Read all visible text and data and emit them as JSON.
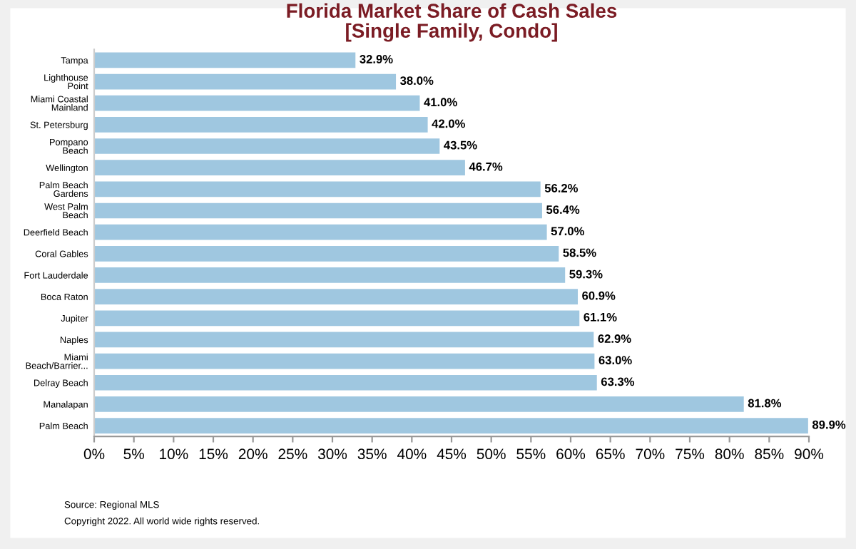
{
  "chart_data": {
    "type": "bar",
    "orientation": "horizontal",
    "title": "Florida Market Share of Cash Sales\n[Single Family, Condo]",
    "categories": [
      "Tampa",
      "Lighthouse\nPoint",
      "Miami Coastal\nMainland",
      "St. Petersburg",
      "Pompano\nBeach",
      "Wellington",
      "Palm Beach\nGardens",
      "West Palm\nBeach",
      "Deerfield Beach",
      "Coral Gables",
      "Fort Lauderdale",
      "Boca Raton",
      "Jupiter",
      "Naples",
      "Miami\nBeach/Barrier...",
      "Delray Beach",
      "Manalapan",
      "Palm Beach"
    ],
    "values": [
      32.9,
      38.0,
      41.0,
      42.0,
      43.5,
      46.7,
      56.2,
      56.4,
      57.0,
      58.5,
      59.3,
      60.9,
      61.1,
      62.9,
      63.0,
      63.3,
      81.8,
      89.9
    ],
    "value_labels": [
      "32.9%",
      "38.0%",
      "41.0%",
      "42.0%",
      "43.5%",
      "46.7%",
      "56.2%",
      "56.4%",
      "57.0%",
      "58.5%",
      "59.3%",
      "60.9%",
      "61.1%",
      "62.9%",
      "63.0%",
      "63.3%",
      "81.8%",
      "89.9%"
    ],
    "color": "#9fc7e0",
    "xlim": [
      0,
      90
    ],
    "xticks": [
      {
        "value": 0,
        "label": "0%"
      },
      {
        "value": 5,
        "label": "5%"
      },
      {
        "value": 10,
        "label": "10%"
      },
      {
        "value": 15,
        "label": "15%"
      },
      {
        "value": 20,
        "label": "20%"
      },
      {
        "value": 25,
        "label": "25%"
      },
      {
        "value": 30,
        "label": "30%"
      },
      {
        "value": 35,
        "label": "35%"
      },
      {
        "value": 40,
        "label": "40%"
      },
      {
        "value": 45,
        "label": "45%"
      },
      {
        "value": 50,
        "label": "50%"
      },
      {
        "value": 55,
        "label": "55%"
      },
      {
        "value": 60,
        "label": "60%"
      },
      {
        "value": 65,
        "label": "65%"
      },
      {
        "value": 70,
        "label": "70%"
      },
      {
        "value": 75,
        "label": "75%"
      },
      {
        "value": 80,
        "label": "80%"
      },
      {
        "value": 85,
        "label": "85%"
      },
      {
        "value": 90,
        "label": "90%"
      }
    ],
    "grid": false,
    "legend": false,
    "annotations": [
      "Source: Regional MLS",
      "Copyright 2022. All world wide rights reserved."
    ]
  }
}
